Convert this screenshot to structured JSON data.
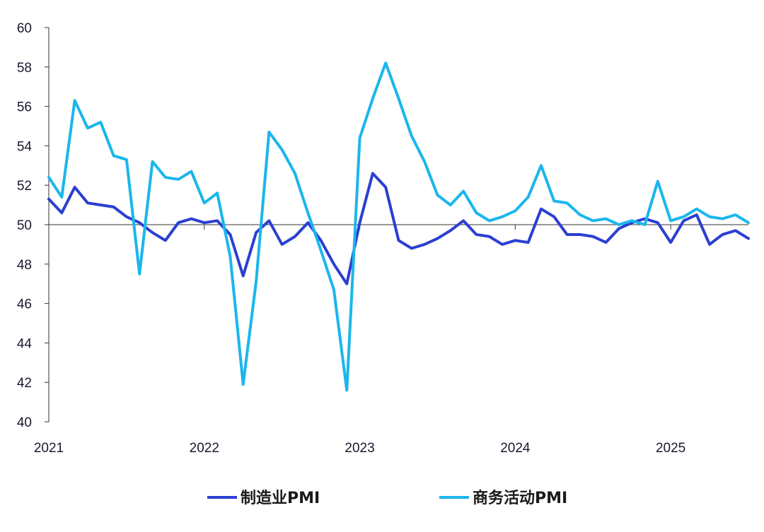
{
  "chart_data": {
    "type": "line",
    "title": "",
    "xlabel": "",
    "ylabel": "",
    "ylim": [
      40,
      60
    ],
    "yticks": [
      40,
      42,
      44,
      46,
      48,
      50,
      52,
      54,
      56,
      58,
      60
    ],
    "xticks": [
      "2021",
      "2022",
      "2023",
      "2024",
      "2025"
    ],
    "x_start": "2021-01",
    "x_end": "2025-07",
    "reference_line": 50,
    "legend_position": "bottom-center",
    "series": [
      {
        "name": "制造业PMI",
        "color": "#2b3fd1",
        "values": [
          51.3,
          50.6,
          51.9,
          51.1,
          51.0,
          50.9,
          50.4,
          50.1,
          49.6,
          49.2,
          50.1,
          50.3,
          50.1,
          50.2,
          49.5,
          47.4,
          49.6,
          50.2,
          49.0,
          49.4,
          50.1,
          49.2,
          48.0,
          47.0,
          50.1,
          52.6,
          51.9,
          49.2,
          48.8,
          49.0,
          49.3,
          49.7,
          50.2,
          49.5,
          49.4,
          49.0,
          49.2,
          49.1,
          50.8,
          50.4,
          49.5,
          49.5,
          49.4,
          49.1,
          49.8,
          50.1,
          50.3,
          50.1,
          49.1,
          50.2,
          50.5,
          49.0,
          49.5,
          49.7,
          49.3
        ]
      },
      {
        "name": "商务活动PMI",
        "color": "#1bb6ec",
        "values": [
          52.4,
          51.4,
          56.3,
          54.9,
          55.2,
          53.5,
          53.3,
          47.5,
          53.2,
          52.4,
          52.3,
          52.7,
          51.1,
          51.6,
          48.4,
          41.9,
          47.1,
          54.7,
          53.8,
          52.6,
          50.6,
          48.7,
          46.7,
          41.6,
          54.4,
          56.4,
          58.2,
          56.4,
          54.5,
          53.2,
          51.5,
          51.0,
          51.7,
          50.6,
          50.2,
          50.4,
          50.7,
          51.4,
          53.0,
          51.2,
          51.1,
          50.5,
          50.2,
          50.3,
          50.0,
          50.2,
          50.0,
          52.2,
          50.2,
          50.4,
          50.8,
          50.4,
          50.3,
          50.5,
          50.1
        ]
      }
    ]
  }
}
